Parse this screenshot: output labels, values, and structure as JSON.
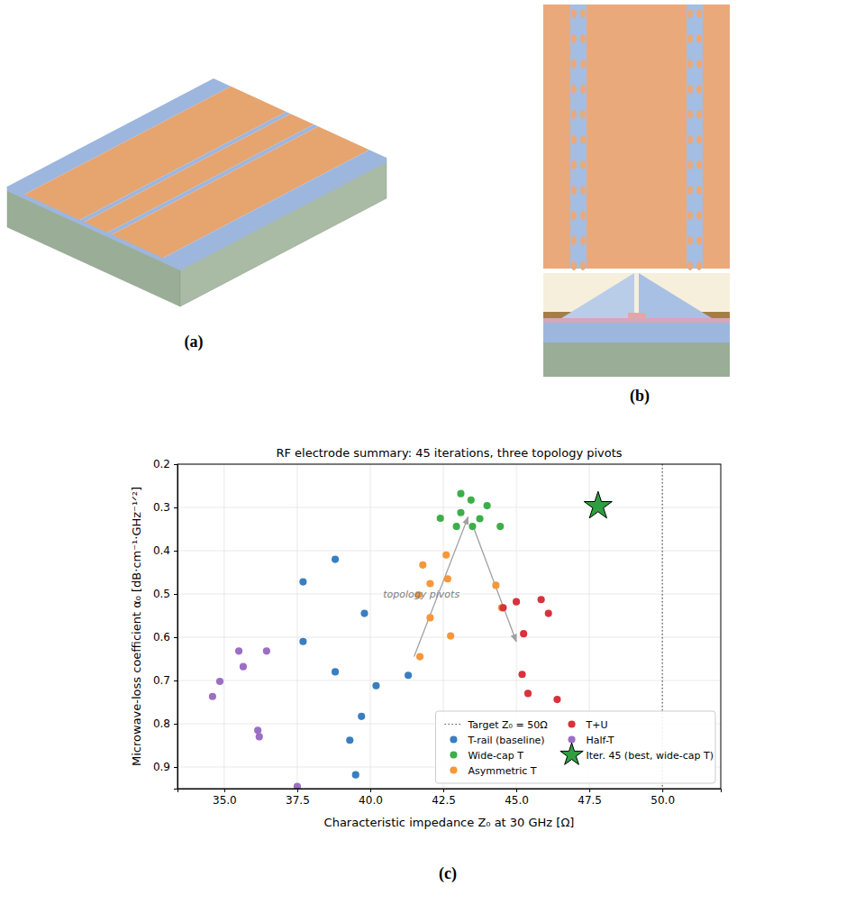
{
  "figure": {
    "panel_labels": [
      "(a)",
      "(b)",
      "(c)"
    ]
  },
  "chart_data": {
    "type": "scatter",
    "title": "RF electrode summary: 45 iterations, three topology pivots",
    "x_label": "Characteristic impedance Z₀ at 30 GHz  [Ω]",
    "y_label": "Microwave-loss coefficient α₀  [dB·cm⁻¹·GHz⁻¹ᐟ²]",
    "xlim": [
      33.4,
      52
    ],
    "ylim": [
      0.95,
      0.2
    ],
    "xticks": [
      {
        "value": 35,
        "label": "35.0"
      },
      {
        "value": 37.5,
        "label": "37.5"
      },
      {
        "value": 40,
        "label": "40.0"
      },
      {
        "value": 42.5,
        "label": "42.5"
      },
      {
        "value": 45,
        "label": "45.0"
      },
      {
        "value": 47.5,
        "label": "47.5"
      },
      {
        "value": 50,
        "label": "50.0"
      }
    ],
    "yticks": [
      0.2,
      0.3,
      0.4,
      0.5,
      0.6,
      0.7,
      0.8,
      0.9
    ],
    "grid": true,
    "legend": "lower right",
    "reference_lines": [
      {
        "x": 50,
        "name": "Target Z₀ = 50Ω",
        "line_style": "dotted"
      }
    ],
    "series": [
      {
        "name": "T-rail (baseline)",
        "color": "#3a7ebf",
        "marker": "circle",
        "x": [
          38.8,
          37.7,
          39.8,
          37.7,
          38.8,
          41.3,
          40.2,
          39.7,
          39.3,
          39.5
        ],
        "values": [
          0.42,
          0.472,
          0.545,
          0.61,
          0.68,
          0.688,
          0.712,
          0.783,
          0.838,
          0.918
        ]
      },
      {
        "name": "Wide-cap T",
        "color": "#3dae49",
        "marker": "circle",
        "x": [
          43.1,
          43.45,
          44.0,
          43.1,
          42.4,
          43.75,
          42.95,
          43.5,
          44.45
        ],
        "values": [
          0.268,
          0.283,
          0.296,
          0.312,
          0.325,
          0.326,
          0.344,
          0.344,
          0.344
        ]
      },
      {
        "name": "Asymmetric T",
        "color": "#f5973a",
        "marker": "circle",
        "x": [
          42.6,
          41.8,
          42.05,
          41.65,
          42.65,
          42.05,
          44.3,
          44.5,
          41.7,
          42.75
        ],
        "values": [
          0.41,
          0.433,
          0.476,
          0.502,
          0.465,
          0.555,
          0.48,
          0.532,
          0.645,
          0.597
        ]
      },
      {
        "name": "T+U",
        "color": "#d8323c",
        "marker": "circle",
        "x": [
          44.55,
          45.0,
          45.85,
          46.1,
          45.25,
          45.2,
          45.4,
          46.4
        ],
        "values": [
          0.532,
          0.518,
          0.513,
          0.545,
          0.592,
          0.686,
          0.73,
          0.744
        ]
      },
      {
        "name": "Half-T",
        "color": "#9b6fc4",
        "marker": "circle",
        "x": [
          35.5,
          36.45,
          35.65,
          34.85,
          34.6,
          36.15,
          36.2,
          37.5
        ],
        "values": [
          0.632,
          0.632,
          0.668,
          0.702,
          0.737,
          0.815,
          0.83,
          0.945
        ]
      },
      {
        "name": "Iter. 45 (best, wide-cap T)",
        "color": "#2e9e3e",
        "marker": "star",
        "x": [
          47.8
        ],
        "values": [
          0.297
        ]
      }
    ],
    "annotations": [
      {
        "text": "topology pivots",
        "x": 41.75,
        "y": 0.5
      }
    ],
    "arrows": [
      {
        "x": [
          41.5,
          43.35
        ],
        "y": [
          0.645,
          0.322
        ]
      },
      {
        "x": [
          43.5,
          45.0
        ],
        "y": [
          0.34,
          0.61
        ]
      }
    ]
  }
}
